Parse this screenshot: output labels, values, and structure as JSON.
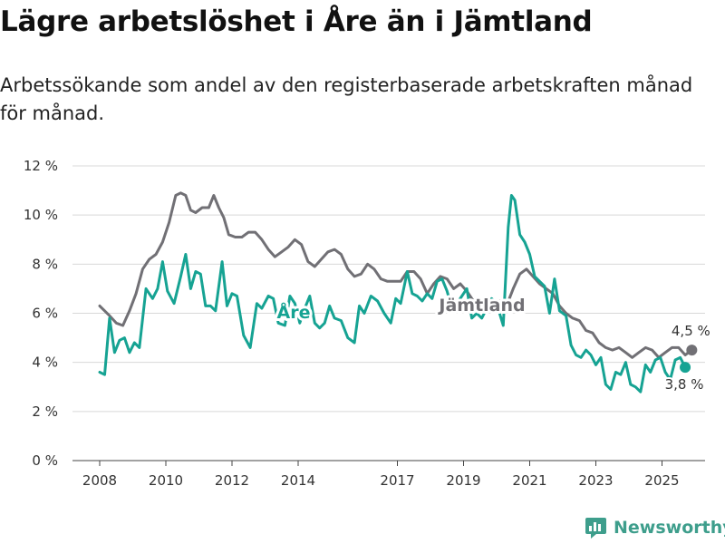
{
  "title": "Lägre arbetslöshet i Åre än i Jämtland",
  "subtitle": "Arbetssökande som andel av den registerbaserade arbetskraften månad för månad.",
  "brand": "Newsworthy",
  "colors": {
    "are": "#16a393",
    "jamtland": "#717075",
    "brand": "#3e9e8c"
  },
  "chart_data": {
    "type": "line",
    "title": "Lägre arbetslöshet i Åre än i Jämtland",
    "xlabel": "",
    "ylabel": "",
    "ylim": [
      0,
      12
    ],
    "xlim": [
      2007.6,
      2026.5
    ],
    "grid": true,
    "y_ticks": [
      0,
      2,
      4,
      6,
      8,
      10,
      12
    ],
    "y_tick_labels": [
      "0 %",
      "2 %",
      "4 %",
      "6 %",
      "8 %",
      "10 %",
      "12 %"
    ],
    "x_ticks": [
      2008,
      2010,
      2012,
      2014,
      2017,
      2019,
      2021,
      2023,
      2025
    ],
    "x_tick_labels": [
      "2008",
      "2010",
      "2012",
      "2014",
      "2017",
      "2019",
      "2021",
      "2023",
      "2025"
    ],
    "series": [
      {
        "name": "Jämtland",
        "label": "Jämtland",
        "color": "#717075",
        "end_label": "4,5 %",
        "points": [
          [
            2008.0,
            6.3
          ],
          [
            2008.3,
            5.9
          ],
          [
            2008.5,
            5.6
          ],
          [
            2008.7,
            5.5
          ],
          [
            2008.9,
            6.1
          ],
          [
            2009.1,
            6.8
          ],
          [
            2009.3,
            7.8
          ],
          [
            2009.5,
            8.2
          ],
          [
            2009.7,
            8.4
          ],
          [
            2009.9,
            8.9
          ],
          [
            2010.1,
            9.7
          ],
          [
            2010.3,
            10.8
          ],
          [
            2010.45,
            10.9
          ],
          [
            2010.6,
            10.8
          ],
          [
            2010.75,
            10.2
          ],
          [
            2010.9,
            10.1
          ],
          [
            2011.1,
            10.3
          ],
          [
            2011.3,
            10.3
          ],
          [
            2011.45,
            10.8
          ],
          [
            2011.6,
            10.3
          ],
          [
            2011.75,
            9.9
          ],
          [
            2011.9,
            9.2
          ],
          [
            2012.1,
            9.1
          ],
          [
            2012.3,
            9.1
          ],
          [
            2012.5,
            9.3
          ],
          [
            2012.7,
            9.3
          ],
          [
            2012.9,
            9.0
          ],
          [
            2013.1,
            8.6
          ],
          [
            2013.3,
            8.3
          ],
          [
            2013.5,
            8.5
          ],
          [
            2013.7,
            8.7
          ],
          [
            2013.9,
            9.0
          ],
          [
            2014.1,
            8.8
          ],
          [
            2014.3,
            8.1
          ],
          [
            2014.5,
            7.9
          ],
          [
            2014.7,
            8.2
          ],
          [
            2014.9,
            8.5
          ],
          [
            2015.1,
            8.6
          ],
          [
            2015.3,
            8.4
          ],
          [
            2015.5,
            7.8
          ],
          [
            2015.7,
            7.5
          ],
          [
            2015.9,
            7.6
          ],
          [
            2016.1,
            8.0
          ],
          [
            2016.3,
            7.8
          ],
          [
            2016.5,
            7.4
          ],
          [
            2016.7,
            7.3
          ],
          [
            2016.9,
            7.3
          ],
          [
            2017.1,
            7.3
          ],
          [
            2017.3,
            7.7
          ],
          [
            2017.5,
            7.7
          ],
          [
            2017.7,
            7.4
          ],
          [
            2017.9,
            6.8
          ],
          [
            2018.1,
            7.2
          ],
          [
            2018.3,
            7.5
          ],
          [
            2018.5,
            7.4
          ],
          [
            2018.7,
            7.0
          ],
          [
            2018.9,
            7.2
          ],
          [
            2019.1,
            6.9
          ],
          [
            2019.3,
            6.5
          ],
          [
            2019.5,
            6.2
          ],
          [
            2019.7,
            6.3
          ],
          [
            2019.9,
            6.4
          ],
          [
            2020.1,
            6.5
          ],
          [
            2020.3,
            6.3
          ],
          [
            2020.5,
            7.0
          ],
          [
            2020.7,
            7.6
          ],
          [
            2020.9,
            7.8
          ],
          [
            2021.1,
            7.5
          ],
          [
            2021.3,
            7.2
          ],
          [
            2021.5,
            7.0
          ],
          [
            2021.7,
            6.8
          ],
          [
            2021.9,
            6.3
          ],
          [
            2022.1,
            6.0
          ],
          [
            2022.3,
            5.8
          ],
          [
            2022.5,
            5.7
          ],
          [
            2022.7,
            5.3
          ],
          [
            2022.9,
            5.2
          ],
          [
            2023.1,
            4.8
          ],
          [
            2023.3,
            4.6
          ],
          [
            2023.5,
            4.5
          ],
          [
            2023.7,
            4.6
          ],
          [
            2023.9,
            4.4
          ],
          [
            2024.1,
            4.2
          ],
          [
            2024.3,
            4.4
          ],
          [
            2024.5,
            4.6
          ],
          [
            2024.7,
            4.5
          ],
          [
            2024.9,
            4.2
          ],
          [
            2025.1,
            4.4
          ],
          [
            2025.3,
            4.6
          ],
          [
            2025.5,
            4.6
          ],
          [
            2025.7,
            4.3
          ],
          [
            2025.9,
            4.5
          ]
        ]
      },
      {
        "name": "Åre",
        "label": "Åre",
        "color": "#16a393",
        "end_label": "3,8 %",
        "points": [
          [
            2008.0,
            3.6
          ],
          [
            2008.15,
            3.5
          ],
          [
            2008.3,
            5.8
          ],
          [
            2008.45,
            4.4
          ],
          [
            2008.6,
            4.9
          ],
          [
            2008.75,
            5.0
          ],
          [
            2008.9,
            4.4
          ],
          [
            2009.05,
            4.8
          ],
          [
            2009.2,
            4.6
          ],
          [
            2009.4,
            7.0
          ],
          [
            2009.6,
            6.6
          ],
          [
            2009.75,
            7.0
          ],
          [
            2009.9,
            8.1
          ],
          [
            2010.05,
            6.9
          ],
          [
            2010.25,
            6.4
          ],
          [
            2010.45,
            7.5
          ],
          [
            2010.6,
            8.4
          ],
          [
            2010.75,
            7.0
          ],
          [
            2010.9,
            7.7
          ],
          [
            2011.05,
            7.6
          ],
          [
            2011.2,
            6.3
          ],
          [
            2011.35,
            6.3
          ],
          [
            2011.5,
            6.1
          ],
          [
            2011.7,
            8.1
          ],
          [
            2011.85,
            6.3
          ],
          [
            2012.0,
            6.8
          ],
          [
            2012.15,
            6.7
          ],
          [
            2012.35,
            5.1
          ],
          [
            2012.55,
            4.6
          ],
          [
            2012.75,
            6.4
          ],
          [
            2012.9,
            6.2
          ],
          [
            2013.1,
            6.7
          ],
          [
            2013.25,
            6.6
          ],
          [
            2013.4,
            5.6
          ],
          [
            2013.6,
            5.5
          ],
          [
            2013.75,
            6.7
          ],
          [
            2013.9,
            6.4
          ],
          [
            2014.05,
            5.6
          ],
          [
            2014.2,
            6.2
          ],
          [
            2014.35,
            6.7
          ],
          [
            2014.5,
            5.6
          ],
          [
            2014.65,
            5.4
          ],
          [
            2014.8,
            5.6
          ],
          [
            2014.95,
            6.3
          ],
          [
            2015.1,
            5.8
          ],
          [
            2015.3,
            5.7
          ],
          [
            2015.5,
            5.0
          ],
          [
            2015.7,
            4.8
          ],
          [
            2015.85,
            6.3
          ],
          [
            2016.0,
            6.0
          ],
          [
            2016.2,
            6.7
          ],
          [
            2016.4,
            6.5
          ],
          [
            2016.6,
            6.0
          ],
          [
            2016.8,
            5.6
          ],
          [
            2016.95,
            6.6
          ],
          [
            2017.1,
            6.4
          ],
          [
            2017.3,
            7.7
          ],
          [
            2017.45,
            6.8
          ],
          [
            2017.6,
            6.7
          ],
          [
            2017.75,
            6.5
          ],
          [
            2017.9,
            6.8
          ],
          [
            2018.05,
            6.6
          ],
          [
            2018.2,
            7.3
          ],
          [
            2018.35,
            7.4
          ],
          [
            2018.5,
            6.9
          ],
          [
            2018.65,
            6.2
          ],
          [
            2018.8,
            6.4
          ],
          [
            2018.95,
            6.7
          ],
          [
            2019.1,
            7.0
          ],
          [
            2019.25,
            5.8
          ],
          [
            2019.4,
            6.0
          ],
          [
            2019.55,
            5.8
          ],
          [
            2019.7,
            6.2
          ],
          [
            2019.85,
            6.6
          ],
          [
            2020.0,
            6.4
          ],
          [
            2020.2,
            5.5
          ],
          [
            2020.35,
            9.5
          ],
          [
            2020.45,
            10.8
          ],
          [
            2020.55,
            10.6
          ],
          [
            2020.7,
            9.2
          ],
          [
            2020.85,
            8.9
          ],
          [
            2021.0,
            8.4
          ],
          [
            2021.15,
            7.5
          ],
          [
            2021.3,
            7.3
          ],
          [
            2021.45,
            7.1
          ],
          [
            2021.6,
            6.0
          ],
          [
            2021.75,
            7.4
          ],
          [
            2021.9,
            6.1
          ],
          [
            2022.1,
            5.9
          ],
          [
            2022.25,
            4.7
          ],
          [
            2022.4,
            4.3
          ],
          [
            2022.55,
            4.2
          ],
          [
            2022.7,
            4.5
          ],
          [
            2022.85,
            4.3
          ],
          [
            2023.0,
            3.9
          ],
          [
            2023.15,
            4.2
          ],
          [
            2023.3,
            3.1
          ],
          [
            2023.45,
            2.9
          ],
          [
            2023.6,
            3.6
          ],
          [
            2023.75,
            3.5
          ],
          [
            2023.9,
            4.0
          ],
          [
            2024.05,
            3.1
          ],
          [
            2024.2,
            3.0
          ],
          [
            2024.35,
            2.8
          ],
          [
            2024.5,
            3.9
          ],
          [
            2024.65,
            3.6
          ],
          [
            2024.8,
            4.1
          ],
          [
            2024.95,
            4.2
          ],
          [
            2025.1,
            3.6
          ],
          [
            2025.25,
            3.3
          ],
          [
            2025.4,
            4.1
          ],
          [
            2025.55,
            4.2
          ],
          [
            2025.7,
            3.8
          ]
        ]
      }
    ]
  }
}
